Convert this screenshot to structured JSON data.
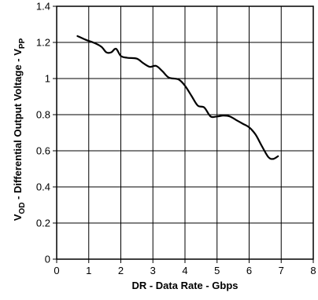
{
  "chart_data": {
    "type": "line",
    "title": "",
    "xlabel": "DR - Data Rate - Gbps",
    "ylabel": {
      "parts": [
        {
          "text": "V",
          "sub": false
        },
        {
          "text": "OD",
          "sub": true
        },
        {
          "text": " - Differential Output Voltage - V",
          "sub": false
        },
        {
          "text": "PP",
          "sub": true
        }
      ]
    },
    "xlim": [
      0,
      8
    ],
    "ylim": [
      0,
      1.4
    ],
    "x_ticks": [
      0,
      1,
      2,
      3,
      4,
      5,
      6,
      7,
      8
    ],
    "y_ticks": [
      0,
      0.2,
      0.4,
      0.6,
      0.8,
      1,
      1.2,
      1.4
    ],
    "x_tick_labels": [
      "0",
      "1",
      "2",
      "3",
      "4",
      "5",
      "6",
      "7",
      "8"
    ],
    "y_tick_labels": [
      "0",
      "0.2",
      "0.4",
      "0.6",
      "0.8",
      "1",
      "1.2",
      "1.4"
    ],
    "grid": true,
    "series": [
      {
        "x": [
          0.65,
          0.9,
          1.2,
          1.4,
          1.55,
          1.7,
          1.85,
          2.0,
          2.2,
          2.5,
          2.7,
          2.9,
          3.1,
          3.3,
          3.5,
          3.8,
          4.0,
          4.2,
          4.4,
          4.6,
          4.8,
          5.0,
          5.2,
          5.4,
          5.6,
          5.8,
          6.0,
          6.2,
          6.4,
          6.6,
          6.75,
          6.9
        ],
        "y": [
          1.235,
          1.215,
          1.195,
          1.175,
          1.145,
          1.145,
          1.165,
          1.125,
          1.115,
          1.11,
          1.085,
          1.065,
          1.07,
          1.04,
          1.005,
          0.995,
          0.96,
          0.905,
          0.85,
          0.84,
          0.79,
          0.79,
          0.795,
          0.79,
          0.77,
          0.75,
          0.73,
          0.69,
          0.625,
          0.565,
          0.555,
          0.57
        ]
      }
    ]
  }
}
